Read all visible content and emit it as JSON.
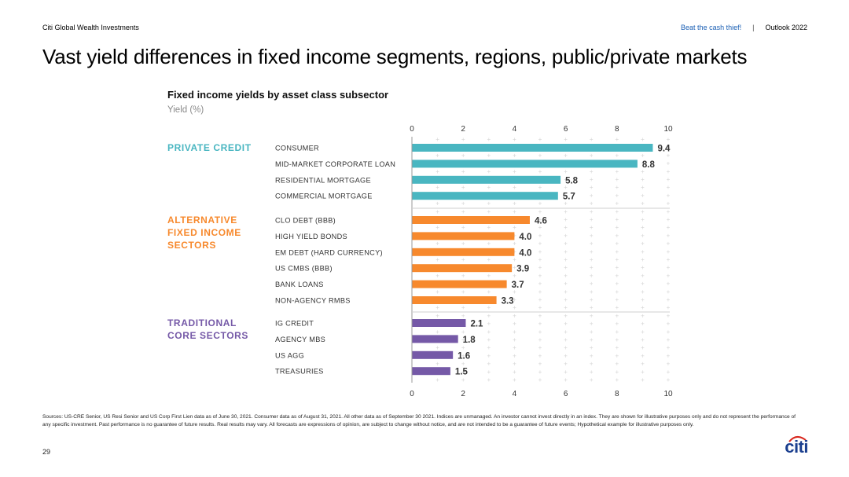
{
  "header": {
    "brand": "Citi Global Wealth Investments",
    "link": "Beat the cash thief!",
    "separator": "|",
    "report": "Outlook 2022"
  },
  "slide_title": "Vast yield differences in fixed income segments, regions, public/private markets",
  "chart_data": {
    "type": "bar",
    "orientation": "horizontal",
    "title": "Fixed income yields by asset class subsector",
    "subtitle": "Yield (%)",
    "xlim": [
      0,
      10
    ],
    "x_ticks": [
      0,
      2,
      4,
      6,
      8,
      10
    ],
    "grid": "dotted-plus",
    "groups": [
      {
        "name": "PRIVATE CREDIT",
        "name_lines": [
          "PRIVATE CREDIT"
        ],
        "color": "#49b6c1",
        "categories": [
          "CONSUMER",
          "MID-MARKET CORPORATE LOAN",
          "RESIDENTIAL MORTGAGE",
          "COMMERCIAL MORTGAGE"
        ],
        "values": [
          9.4,
          8.8,
          5.8,
          5.7
        ]
      },
      {
        "name": "ALTERNATIVE FIXED INCOME SECTORS",
        "name_lines": [
          "ALTERNATIVE",
          "FIXED INCOME",
          "SECTORS"
        ],
        "color": "#f7892d",
        "categories": [
          "CLO DEBT (BBB)",
          "HIGH YIELD BONDS",
          "EM DEBT (HARD CURRENCY)",
          "US CMBS (BBB)",
          "BANK LOANS",
          "NON-AGENCY RMBS"
        ],
        "values": [
          4.6,
          4.0,
          4.0,
          3.9,
          3.7,
          3.3
        ]
      },
      {
        "name": "TRADITIONAL CORE SECTORS",
        "name_lines": [
          "TRADITIONAL",
          "CORE SECTORS"
        ],
        "color": "#7559a7",
        "categories": [
          "IG CREDIT",
          "AGENCY MBS",
          "US AGG",
          "TREASURIES"
        ],
        "values": [
          2.1,
          1.8,
          1.6,
          1.5
        ]
      }
    ]
  },
  "footnote": "Sources: US-CRE Senior, US Resi Senior and US Corp First Lien data as of June 30, 2021. Consumer data as of August 31, 2021. All other data as of September 30 2021. Indices are unmanaged. An investor cannot invest directly in an index. They are shown for illustrative purposes only and do not represent the performance of any specific investment. Past performance is no guarantee of future results. Real results may vary. All forecasts are expressions of opinion, are subject to change without notice, and are not intended to be a guarantee of future events; Hypothetical example for illustrative purposes only.",
  "page_number": "29",
  "logo_text": "citi",
  "colors": {
    "logo": "#1b3f8f",
    "link": "#1a5fb4"
  }
}
